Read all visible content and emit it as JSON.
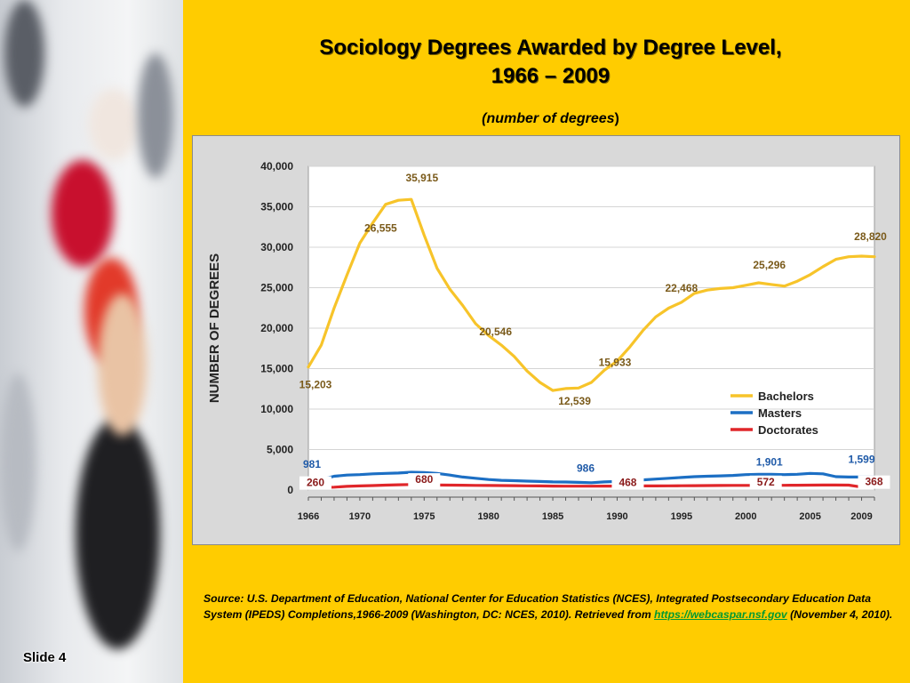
{
  "slide": {
    "label": "Slide 4"
  },
  "title": {
    "line1": "Sociology Degrees Awarded by Degree Level,",
    "line2": "1966 – 2009"
  },
  "subtitle": {
    "italic": "(number of degrees",
    "plain": ")"
  },
  "source": {
    "text": "Source: U.S. Department of Education, National Center for Education Statistics (NCES), Integrated Postsecondary Education Data System (IPEDS) Completions,1966-2009 (Washington, DC: NCES, 2010). Retrieved from ",
    "link": "https://webcaspar.nsf.gov",
    "suffix": " (November 4, 2010)."
  },
  "colors": {
    "background": "#ffcc00",
    "bachelors": "#f7c42a",
    "masters": "#1c6fc4",
    "doctorates": "#e0262a",
    "label_text": "#7a5a1a"
  },
  "chart_data": {
    "type": "line",
    "title": "",
    "xlabel": "",
    "ylabel": "NUMBER OF DEGREES",
    "xlim": [
      1966,
      2010
    ],
    "ylim": [
      0,
      40000
    ],
    "x_tick_labels": [
      "1966",
      "1970",
      "1975",
      "1980",
      "1985",
      "1990",
      "1995",
      "2000",
      "2005",
      "2009"
    ],
    "y_tick_labels": [
      "40,000",
      "35,000",
      "30,000",
      "25,000",
      "20,000",
      "15,000",
      "10,000",
      "5,000",
      "0"
    ],
    "grid": true,
    "legend_position": "bottom-right",
    "x": [
      1966,
      1967,
      1968,
      1969,
      1970,
      1971,
      1972,
      1973,
      1974,
      1975,
      1976,
      1977,
      1978,
      1979,
      1980,
      1981,
      1982,
      1983,
      1984,
      1985,
      1986,
      1987,
      1988,
      1989,
      1990,
      1991,
      1992,
      1993,
      1994,
      1995,
      1996,
      1997,
      1998,
      1999,
      2000,
      2001,
      2002,
      2003,
      2004,
      2005,
      2006,
      2007,
      2008,
      2009,
      2010
    ],
    "series": [
      {
        "name": "Bachelors",
        "color": "#f7c42a",
        "values": [
          15203,
          17900,
          22500,
          26555,
          30500,
          33000,
          35300,
          35800,
          35915,
          31500,
          27400,
          24800,
          22800,
          20546,
          19100,
          17900,
          16500,
          14700,
          13300,
          12300,
          12539,
          12600,
          13300,
          14800,
          15933,
          17700,
          19700,
          21400,
          22468,
          23200,
          24300,
          24700,
          24900,
          25000,
          25296,
          25600,
          25400,
          25200,
          25800,
          26600,
          27600,
          28500,
          28820,
          28900,
          28820
        ]
      },
      {
        "name": "Masters",
        "color": "#1c6fc4",
        "values": [
          981,
          1300,
          1700,
          1850,
          1900,
          2000,
          2050,
          2100,
          2200,
          2150,
          2050,
          1850,
          1600,
          1450,
          1300,
          1200,
          1150,
          1100,
          1050,
          1000,
          986,
          950,
          900,
          1000,
          1050,
          1150,
          1250,
          1350,
          1450,
          1550,
          1650,
          1700,
          1750,
          1800,
          1901,
          1950,
          1950,
          1900,
          1950,
          2050,
          2000,
          1650,
          1599,
          1599,
          1599
        ]
      },
      {
        "name": "Doctorates",
        "color": "#e0262a",
        "values": [
          260,
          300,
          350,
          450,
          500,
          550,
          600,
          650,
          680,
          650,
          620,
          600,
          590,
          570,
          560,
          550,
          540,
          520,
          500,
          480,
          470,
          468,
          470,
          480,
          480,
          490,
          500,
          510,
          520,
          530,
          540,
          550,
          560,
          570,
          572,
          575,
          580,
          585,
          590,
          600,
          610,
          620,
          600,
          368,
          368
        ]
      }
    ],
    "annotations": [
      {
        "text": "15,203",
        "series": "Bachelors",
        "x": 1966
      },
      {
        "text": "26,555",
        "series": "Bachelors",
        "x": 1971
      },
      {
        "text": "35,915",
        "series": "Bachelors",
        "x": 1974
      },
      {
        "text": "20,546",
        "series": "Bachelors",
        "x": 1980
      },
      {
        "text": "12,539",
        "series": "Bachelors",
        "x": 1986
      },
      {
        "text": "15,933",
        "series": "Bachelors",
        "x": 1989
      },
      {
        "text": "22,468",
        "series": "Bachelors",
        "x": 1995
      },
      {
        "text": "25,296",
        "series": "Bachelors",
        "x": 2001
      },
      {
        "text": "28,820",
        "series": "Bachelors",
        "x": 2009
      },
      {
        "text": "981",
        "series": "Masters",
        "x": 1966
      },
      {
        "text": "986",
        "series": "Masters",
        "x": 1987
      },
      {
        "text": "1,901",
        "series": "Masters",
        "x": 2001
      },
      {
        "text": "1,599",
        "series": "Masters",
        "x": 2009
      },
      {
        "text": "260",
        "series": "Doctorates",
        "x": 1966
      },
      {
        "text": "680",
        "series": "Doctorates",
        "x": 1975
      },
      {
        "text": "468",
        "series": "Doctorates",
        "x": 1990
      },
      {
        "text": "572",
        "series": "Doctorates",
        "x": 2001
      },
      {
        "text": "368",
        "series": "Doctorates",
        "x": 2009
      }
    ]
  }
}
